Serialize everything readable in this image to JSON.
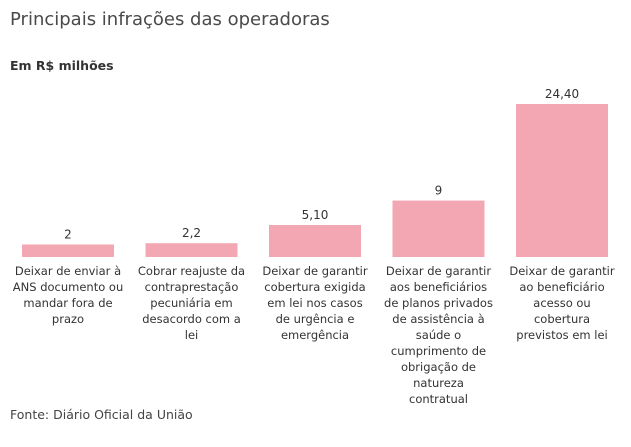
{
  "title": "Principais infrações das operadoras",
  "subtitle": "Em R$ milhões",
  "source": "Fonte: Diário Oficial da União",
  "chart_data": {
    "type": "bar",
    "title": "Principais infrações das operadoras",
    "ylabel": "Em R$ milhões",
    "categories": [
      "Deixar de enviar à ANS documento ou mandar fora de prazo",
      "Cobrar reajuste da contraprestação pecuniária em desacordo com a lei",
      "Deixar de garantir cobertura exigida em lei nos casos de urgência e emergência",
      "Deixar de garantir aos beneficiários de planos privados de assistência à saúde o cumprimento de obrigação de natureza contratual",
      "Deixar de garantir ao beneficiário acesso ou cobertura previstos em lei"
    ],
    "values": [
      2,
      2.2,
      5.1,
      9,
      24.4
    ],
    "value_labels": [
      "2",
      "2,2",
      "5,10",
      "9",
      "24,40"
    ],
    "bar_color": "#f2a7b2",
    "ylim": [
      0,
      24.4
    ],
    "grid": false,
    "legend": "none"
  }
}
